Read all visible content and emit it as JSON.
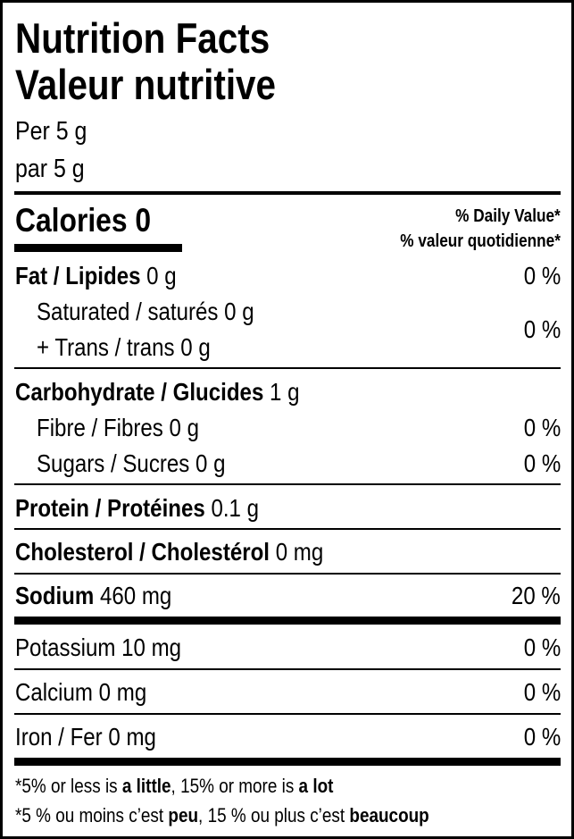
{
  "title_en": "Nutrition Facts",
  "title_fr": "Valeur nutritive",
  "serving_en": "Per 5 g",
  "serving_fr": "par 5 g",
  "calories": {
    "label": "Calories",
    "value": "0"
  },
  "daily_value_en": "% Daily Value*",
  "daily_value_fr": "% valeur quotidienne*",
  "fat": {
    "label": "Fat / Lipides",
    "amount": "0 g",
    "dv": "0 %"
  },
  "saturated": {
    "label": "Saturated / saturés",
    "amount": "0 g"
  },
  "trans": {
    "label": "+ Trans / trans",
    "amount": "0 g"
  },
  "sat_trans_dv": "0 %",
  "carbohydrate": {
    "label": "Carbohydrate / Glucides",
    "amount": "1 g"
  },
  "fibre": {
    "label": "Fibre / Fibres",
    "amount": "0 g",
    "dv": "0 %"
  },
  "sugars": {
    "label": "Sugars / Sucres",
    "amount": "0 g",
    "dv": "0 %"
  },
  "protein": {
    "label": "Protein / Protéines",
    "amount": "0.1 g"
  },
  "cholesterol": {
    "label": "Cholesterol / Cholestérol",
    "amount": "0 mg"
  },
  "sodium": {
    "label": "Sodium",
    "amount": "460 mg",
    "dv": "20 %"
  },
  "potassium": {
    "label": "Potassium",
    "amount": "10 mg",
    "dv": "0 %"
  },
  "calcium": {
    "label": "Calcium",
    "amount": "0 mg",
    "dv": "0 %"
  },
  "iron": {
    "label": "Iron / Fer",
    "amount": "0 mg",
    "dv": "0 %"
  },
  "footnote_en": {
    "p1": "*5% or less is ",
    "b1": "a little",
    "p2": ", 15% or more is ",
    "b2": "a lot"
  },
  "footnote_fr": {
    "p1": "*5 % ou moins c’est ",
    "b1": "peu",
    "p2": ", 15 % ou plus c’est ",
    "b2": "beaucoup"
  }
}
